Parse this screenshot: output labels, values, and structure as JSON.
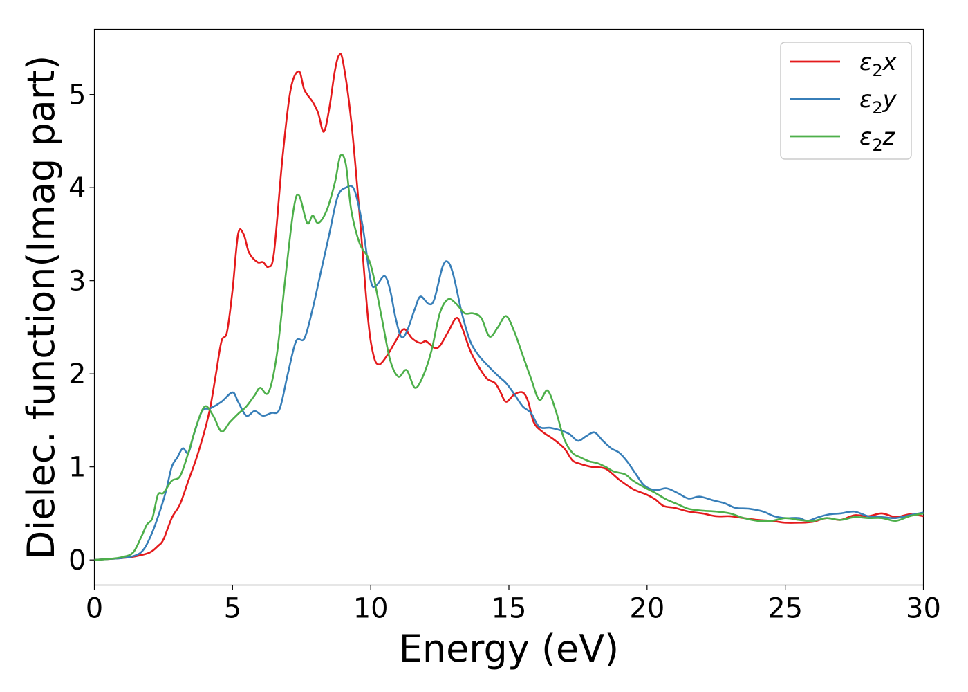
{
  "chart_data": {
    "type": "line",
    "xlabel": "Energy (eV)",
    "ylabel": "Dielec. function(Imag part)",
    "xlim": [
      0,
      30
    ],
    "ylim": [
      -0.27,
      5.7
    ],
    "xticks": [
      0,
      5,
      10,
      15,
      20,
      25,
      30
    ],
    "yticks": [
      0,
      1,
      2,
      3,
      4,
      5
    ],
    "grid": false,
    "legend_position": "top-right",
    "series": [
      {
        "name": "ε₂x",
        "legend_base": "ε",
        "legend_sub": "2",
        "legend_var": "x",
        "color": "#e41a1c",
        "points": [
          [
            0,
            0
          ],
          [
            0.5,
            0.01
          ],
          [
            1,
            0.02
          ],
          [
            1.5,
            0.04
          ],
          [
            2,
            0.08
          ],
          [
            2.3,
            0.15
          ],
          [
            2.5,
            0.22
          ],
          [
            2.8,
            0.45
          ],
          [
            3.1,
            0.6
          ],
          [
            3.4,
            0.85
          ],
          [
            3.7,
            1.1
          ],
          [
            4,
            1.4
          ],
          [
            4.2,
            1.65
          ],
          [
            4.4,
            2.0
          ],
          [
            4.6,
            2.35
          ],
          [
            4.8,
            2.45
          ],
          [
            5,
            2.9
          ],
          [
            5.2,
            3.5
          ],
          [
            5.4,
            3.5
          ],
          [
            5.6,
            3.3
          ],
          [
            5.9,
            3.2
          ],
          [
            6.1,
            3.2
          ],
          [
            6.3,
            3.15
          ],
          [
            6.5,
            3.3
          ],
          [
            6.8,
            4.3
          ],
          [
            7.1,
            5.05
          ],
          [
            7.4,
            5.25
          ],
          [
            7.6,
            5.05
          ],
          [
            7.9,
            4.92
          ],
          [
            8.1,
            4.8
          ],
          [
            8.3,
            4.6
          ],
          [
            8.5,
            4.85
          ],
          [
            8.7,
            5.25
          ],
          [
            8.85,
            5.42
          ],
          [
            9.0,
            5.35
          ],
          [
            9.3,
            4.7
          ],
          [
            9.6,
            3.7
          ],
          [
            9.9,
            2.6
          ],
          [
            10.1,
            2.2
          ],
          [
            10.3,
            2.1
          ],
          [
            10.6,
            2.2
          ],
          [
            10.9,
            2.35
          ],
          [
            11.2,
            2.48
          ],
          [
            11.5,
            2.38
          ],
          [
            11.8,
            2.33
          ],
          [
            12.0,
            2.35
          ],
          [
            12.3,
            2.28
          ],
          [
            12.5,
            2.3
          ],
          [
            12.8,
            2.45
          ],
          [
            13.1,
            2.6
          ],
          [
            13.3,
            2.5
          ],
          [
            13.6,
            2.25
          ],
          [
            13.9,
            2.08
          ],
          [
            14.2,
            1.95
          ],
          [
            14.5,
            1.9
          ],
          [
            14.7,
            1.8
          ],
          [
            14.9,
            1.7
          ],
          [
            15.2,
            1.78
          ],
          [
            15.5,
            1.8
          ],
          [
            15.7,
            1.7
          ],
          [
            15.9,
            1.48
          ],
          [
            16.2,
            1.38
          ],
          [
            16.6,
            1.3
          ],
          [
            17.0,
            1.2
          ],
          [
            17.3,
            1.07
          ],
          [
            17.6,
            1.03
          ],
          [
            18.0,
            1.0
          ],
          [
            18.5,
            0.98
          ],
          [
            19.0,
            0.86
          ],
          [
            19.5,
            0.76
          ],
          [
            20.0,
            0.7
          ],
          [
            20.3,
            0.65
          ],
          [
            20.6,
            0.58
          ],
          [
            21.0,
            0.56
          ],
          [
            21.5,
            0.52
          ],
          [
            22.0,
            0.5
          ],
          [
            22.5,
            0.47
          ],
          [
            23.0,
            0.47
          ],
          [
            23.5,
            0.45
          ],
          [
            24.0,
            0.43
          ],
          [
            24.5,
            0.42
          ],
          [
            25.0,
            0.4
          ],
          [
            25.5,
            0.4
          ],
          [
            26.0,
            0.41
          ],
          [
            26.5,
            0.45
          ],
          [
            27.0,
            0.43
          ],
          [
            27.5,
            0.48
          ],
          [
            28.0,
            0.47
          ],
          [
            28.5,
            0.5
          ],
          [
            29.0,
            0.46
          ],
          [
            29.5,
            0.49
          ],
          [
            30.0,
            0.47
          ]
        ]
      },
      {
        "name": "ε₂y",
        "legend_base": "ε",
        "legend_sub": "2",
        "legend_var": "y",
        "color": "#377eb8",
        "points": [
          [
            0,
            0
          ],
          [
            0.5,
            0.01
          ],
          [
            1,
            0.02
          ],
          [
            1.5,
            0.05
          ],
          [
            1.8,
            0.12
          ],
          [
            2.1,
            0.3
          ],
          [
            2.4,
            0.55
          ],
          [
            2.6,
            0.75
          ],
          [
            2.8,
            1.0
          ],
          [
            3.0,
            1.1
          ],
          [
            3.2,
            1.2
          ],
          [
            3.4,
            1.15
          ],
          [
            3.6,
            1.35
          ],
          [
            3.9,
            1.6
          ],
          [
            4.2,
            1.63
          ],
          [
            4.6,
            1.7
          ],
          [
            5.0,
            1.8
          ],
          [
            5.2,
            1.7
          ],
          [
            5.5,
            1.55
          ],
          [
            5.8,
            1.6
          ],
          [
            6.1,
            1.55
          ],
          [
            6.4,
            1.58
          ],
          [
            6.7,
            1.62
          ],
          [
            7.0,
            2.0
          ],
          [
            7.3,
            2.35
          ],
          [
            7.6,
            2.38
          ],
          [
            7.9,
            2.7
          ],
          [
            8.2,
            3.1
          ],
          [
            8.5,
            3.5
          ],
          [
            8.8,
            3.9
          ],
          [
            9.1,
            4.0
          ],
          [
            9.4,
            3.98
          ],
          [
            9.7,
            3.6
          ],
          [
            10.0,
            3.0
          ],
          [
            10.2,
            2.95
          ],
          [
            10.5,
            3.05
          ],
          [
            10.7,
            2.9
          ],
          [
            10.9,
            2.6
          ],
          [
            11.1,
            2.4
          ],
          [
            11.3,
            2.45
          ],
          [
            11.6,
            2.7
          ],
          [
            11.8,
            2.83
          ],
          [
            12.1,
            2.75
          ],
          [
            12.3,
            2.8
          ],
          [
            12.6,
            3.15
          ],
          [
            12.8,
            3.2
          ],
          [
            13.0,
            3.05
          ],
          [
            13.3,
            2.65
          ],
          [
            13.6,
            2.35
          ],
          [
            13.9,
            2.2
          ],
          [
            14.2,
            2.1
          ],
          [
            14.6,
            1.98
          ],
          [
            14.9,
            1.9
          ],
          [
            15.2,
            1.78
          ],
          [
            15.5,
            1.65
          ],
          [
            15.8,
            1.58
          ],
          [
            16.1,
            1.43
          ],
          [
            16.5,
            1.42
          ],
          [
            16.9,
            1.39
          ],
          [
            17.2,
            1.35
          ],
          [
            17.5,
            1.28
          ],
          [
            17.8,
            1.33
          ],
          [
            18.1,
            1.37
          ],
          [
            18.4,
            1.28
          ],
          [
            18.7,
            1.2
          ],
          [
            19.0,
            1.15
          ],
          [
            19.3,
            1.05
          ],
          [
            19.6,
            0.92
          ],
          [
            19.9,
            0.8
          ],
          [
            20.3,
            0.75
          ],
          [
            20.7,
            0.77
          ],
          [
            21.1,
            0.72
          ],
          [
            21.5,
            0.66
          ],
          [
            21.9,
            0.68
          ],
          [
            22.4,
            0.64
          ],
          [
            22.8,
            0.61
          ],
          [
            23.2,
            0.56
          ],
          [
            23.7,
            0.55
          ],
          [
            24.2,
            0.52
          ],
          [
            24.6,
            0.47
          ],
          [
            25.0,
            0.45
          ],
          [
            25.5,
            0.45
          ],
          [
            25.8,
            0.42
          ],
          [
            26.2,
            0.46
          ],
          [
            26.6,
            0.49
          ],
          [
            27.0,
            0.5
          ],
          [
            27.5,
            0.52
          ],
          [
            28.0,
            0.47
          ],
          [
            28.5,
            0.46
          ],
          [
            29.0,
            0.45
          ],
          [
            29.5,
            0.48
          ],
          [
            30.0,
            0.51
          ]
        ]
      },
      {
        "name": "ε₂z",
        "legend_base": "ε",
        "legend_sub": "2",
        "legend_var": "z",
        "color": "#4daf4a",
        "points": [
          [
            0,
            0
          ],
          [
            0.5,
            0.01
          ],
          [
            1,
            0.03
          ],
          [
            1.4,
            0.08
          ],
          [
            1.7,
            0.25
          ],
          [
            1.9,
            0.38
          ],
          [
            2.1,
            0.45
          ],
          [
            2.3,
            0.7
          ],
          [
            2.5,
            0.72
          ],
          [
            2.8,
            0.85
          ],
          [
            3.1,
            0.9
          ],
          [
            3.4,
            1.15
          ],
          [
            3.7,
            1.45
          ],
          [
            4.0,
            1.65
          ],
          [
            4.3,
            1.55
          ],
          [
            4.6,
            1.38
          ],
          [
            4.9,
            1.48
          ],
          [
            5.2,
            1.57
          ],
          [
            5.5,
            1.65
          ],
          [
            5.8,
            1.77
          ],
          [
            6.0,
            1.85
          ],
          [
            6.3,
            1.8
          ],
          [
            6.6,
            2.2
          ],
          [
            6.9,
            3.0
          ],
          [
            7.2,
            3.75
          ],
          [
            7.4,
            3.92
          ],
          [
            7.7,
            3.62
          ],
          [
            7.9,
            3.7
          ],
          [
            8.1,
            3.62
          ],
          [
            8.4,
            3.75
          ],
          [
            8.7,
            4.05
          ],
          [
            8.9,
            4.34
          ],
          [
            9.1,
            4.25
          ],
          [
            9.3,
            3.75
          ],
          [
            9.6,
            3.4
          ],
          [
            9.9,
            3.25
          ],
          [
            10.1,
            3.05
          ],
          [
            10.4,
            2.6
          ],
          [
            10.7,
            2.15
          ],
          [
            11.0,
            1.97
          ],
          [
            11.3,
            2.04
          ],
          [
            11.6,
            1.85
          ],
          [
            11.9,
            1.98
          ],
          [
            12.2,
            2.25
          ],
          [
            12.5,
            2.65
          ],
          [
            12.8,
            2.8
          ],
          [
            13.1,
            2.75
          ],
          [
            13.4,
            2.65
          ],
          [
            13.7,
            2.65
          ],
          [
            14.0,
            2.6
          ],
          [
            14.3,
            2.4
          ],
          [
            14.6,
            2.5
          ],
          [
            14.9,
            2.62
          ],
          [
            15.2,
            2.45
          ],
          [
            15.5,
            2.2
          ],
          [
            15.8,
            1.95
          ],
          [
            16.1,
            1.72
          ],
          [
            16.4,
            1.82
          ],
          [
            16.7,
            1.6
          ],
          [
            17.0,
            1.3
          ],
          [
            17.3,
            1.15
          ],
          [
            17.6,
            1.1
          ],
          [
            17.9,
            1.06
          ],
          [
            18.2,
            1.04
          ],
          [
            18.5,
            1.0
          ],
          [
            18.8,
            0.95
          ],
          [
            19.2,
            0.92
          ],
          [
            19.5,
            0.85
          ],
          [
            19.9,
            0.78
          ],
          [
            20.3,
            0.72
          ],
          [
            20.7,
            0.65
          ],
          [
            21.1,
            0.6
          ],
          [
            21.5,
            0.55
          ],
          [
            22.0,
            0.53
          ],
          [
            22.5,
            0.52
          ],
          [
            23.0,
            0.5
          ],
          [
            23.5,
            0.45
          ],
          [
            24.0,
            0.42
          ],
          [
            24.5,
            0.42
          ],
          [
            25.0,
            0.45
          ],
          [
            25.5,
            0.43
          ],
          [
            26.0,
            0.42
          ],
          [
            26.5,
            0.45
          ],
          [
            27.0,
            0.43
          ],
          [
            27.5,
            0.46
          ],
          [
            28.0,
            0.45
          ],
          [
            28.5,
            0.45
          ],
          [
            29.0,
            0.42
          ],
          [
            29.5,
            0.47
          ],
          [
            30.0,
            0.5
          ]
        ]
      }
    ]
  }
}
